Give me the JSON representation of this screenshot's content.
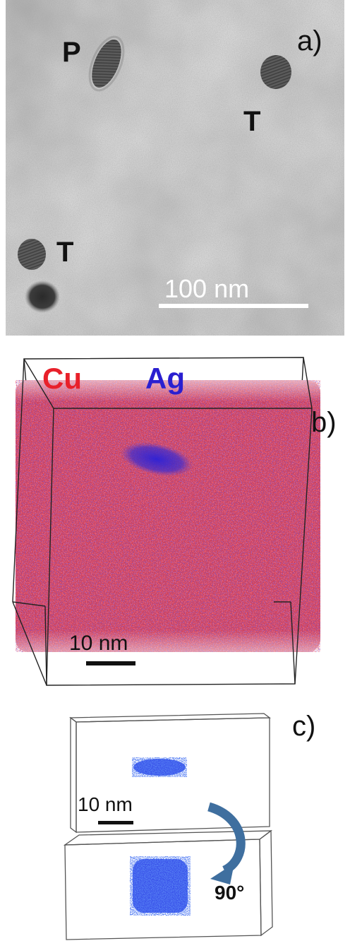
{
  "panel_a": {
    "letter": "a)",
    "labels": {
      "p": "P",
      "t_top": "T",
      "t_left": "T"
    },
    "scale_bar": "100 nm"
  },
  "panel_b": {
    "letter": "b)",
    "legend": {
      "cu": "Cu",
      "ag": "Ag"
    },
    "legend_colors": {
      "cu": "#e8202a",
      "ag": "#2a1fd0"
    },
    "scale_bar": "10 nm"
  },
  "panel_c": {
    "letter": "c)",
    "scale_bar": "10 nm",
    "rotation": "90°",
    "arrow_color": "#3f6f9f",
    "precipitate_color": "#1736e6"
  }
}
